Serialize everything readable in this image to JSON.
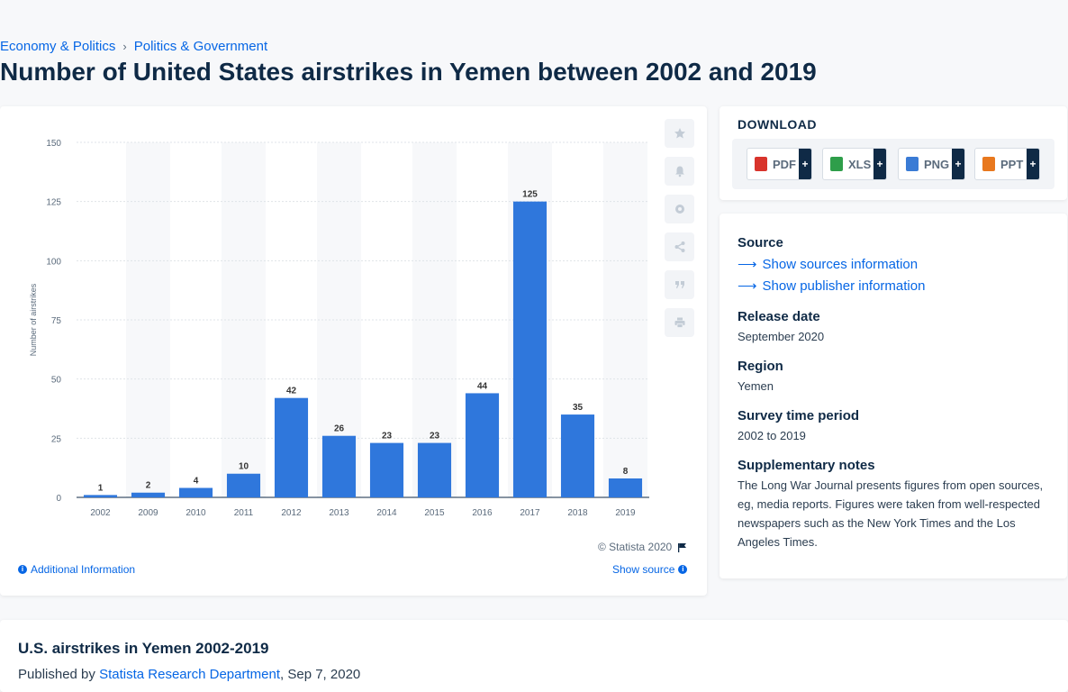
{
  "breadcrumb": {
    "items": [
      "Economy & Politics",
      "Politics & Government"
    ],
    "separator": "›"
  },
  "page_title": "Number of United States airstrikes in Yemen between 2002 and 2019",
  "toolbar_icons": [
    "star-icon",
    "bell-icon",
    "gear-icon",
    "share-icon",
    "quote-icon",
    "print-icon"
  ],
  "chart_footer": {
    "copyright": "© Statista 2020",
    "additional_info": "Additional Information",
    "show_source": "Show source"
  },
  "chart_data": {
    "type": "bar",
    "categories": [
      "2002",
      "2009",
      "2010",
      "2011",
      "2012",
      "2013",
      "2014",
      "2015",
      "2016",
      "2017",
      "2018",
      "2019"
    ],
    "values": [
      1,
      2,
      4,
      10,
      42,
      26,
      23,
      23,
      44,
      125,
      35,
      8
    ],
    "ylabel": "Number of airstrikes",
    "xlabel": "",
    "ylim": [
      0,
      150
    ],
    "yticks": [
      0,
      25,
      50,
      75,
      100,
      125,
      150
    ],
    "bar_color": "#2f77dc",
    "grid": true,
    "alternating_column_bands": true
  },
  "download": {
    "title": "DOWNLOAD",
    "buttons": [
      {
        "label": "PDF",
        "color": "#d8342c"
      },
      {
        "label": "XLS",
        "color": "#2e9e4a"
      },
      {
        "label": "PNG",
        "color": "#3a7bd5"
      },
      {
        "label": "PPT",
        "color": "#e8781e"
      }
    ],
    "plus": "+"
  },
  "info": {
    "source_heading": "Source",
    "sources_link": "Show sources information",
    "publisher_link": "Show publisher information",
    "release_heading": "Release date",
    "release_value": "September 2020",
    "region_heading": "Region",
    "region_value": "Yemen",
    "survey_heading": "Survey time period",
    "survey_value": "2002 to 2019",
    "notes_heading": "Supplementary notes",
    "notes_value": "The Long War Journal presents figures from open sources, eg, media reports. Figures were taken from well-respected newspapers such as the New York Times and the Los Angeles Times."
  },
  "bottom": {
    "title": "U.S. airstrikes in Yemen 2002-2019",
    "published_prefix": "Published by",
    "publisher": "Statista Research Department",
    "date": ", Sep 7, 2020"
  }
}
